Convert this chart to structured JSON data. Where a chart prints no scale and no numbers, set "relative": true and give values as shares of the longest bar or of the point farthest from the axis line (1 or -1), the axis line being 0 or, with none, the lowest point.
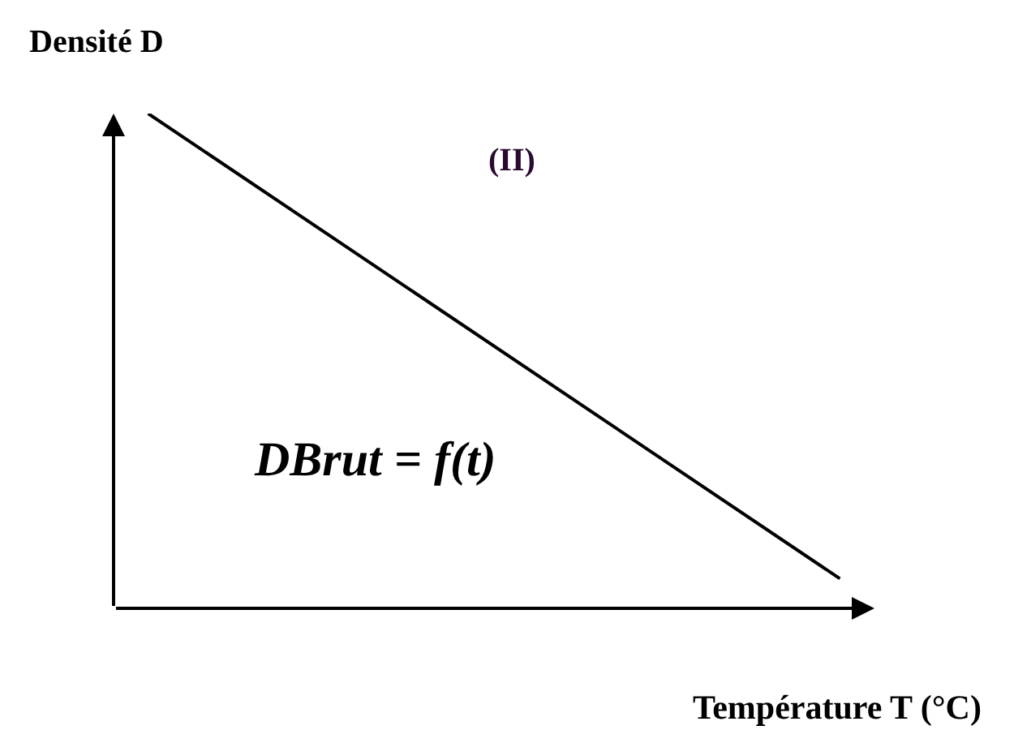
{
  "chart_data": {
    "type": "line",
    "relative": true,
    "xlabel": "Température T (°C)",
    "ylabel": "Densité D",
    "categories": [
      null,
      null,
      null,
      null,
      null,
      null,
      null,
      null,
      null,
      null,
      null,
      null,
      null,
      null,
      null,
      null,
      null,
      null,
      null,
      null,
      null,
      null,
      null
    ],
    "series": [
      {
        "color": "#000000",
        "values": [
          null,
          1,
          null,
          null,
          null,
          null,
          null,
          null,
          null,
          null,
          null,
          null,
          null,
          null,
          null,
          null,
          null,
          null,
          null,
          null,
          null,
          0.06,
          null
        ]
      }
    ],
    "annotations": [
      "(II)",
      "DBrut = f(t)"
    ],
    "marker": "none",
    "line_style": "solid"
  }
}
